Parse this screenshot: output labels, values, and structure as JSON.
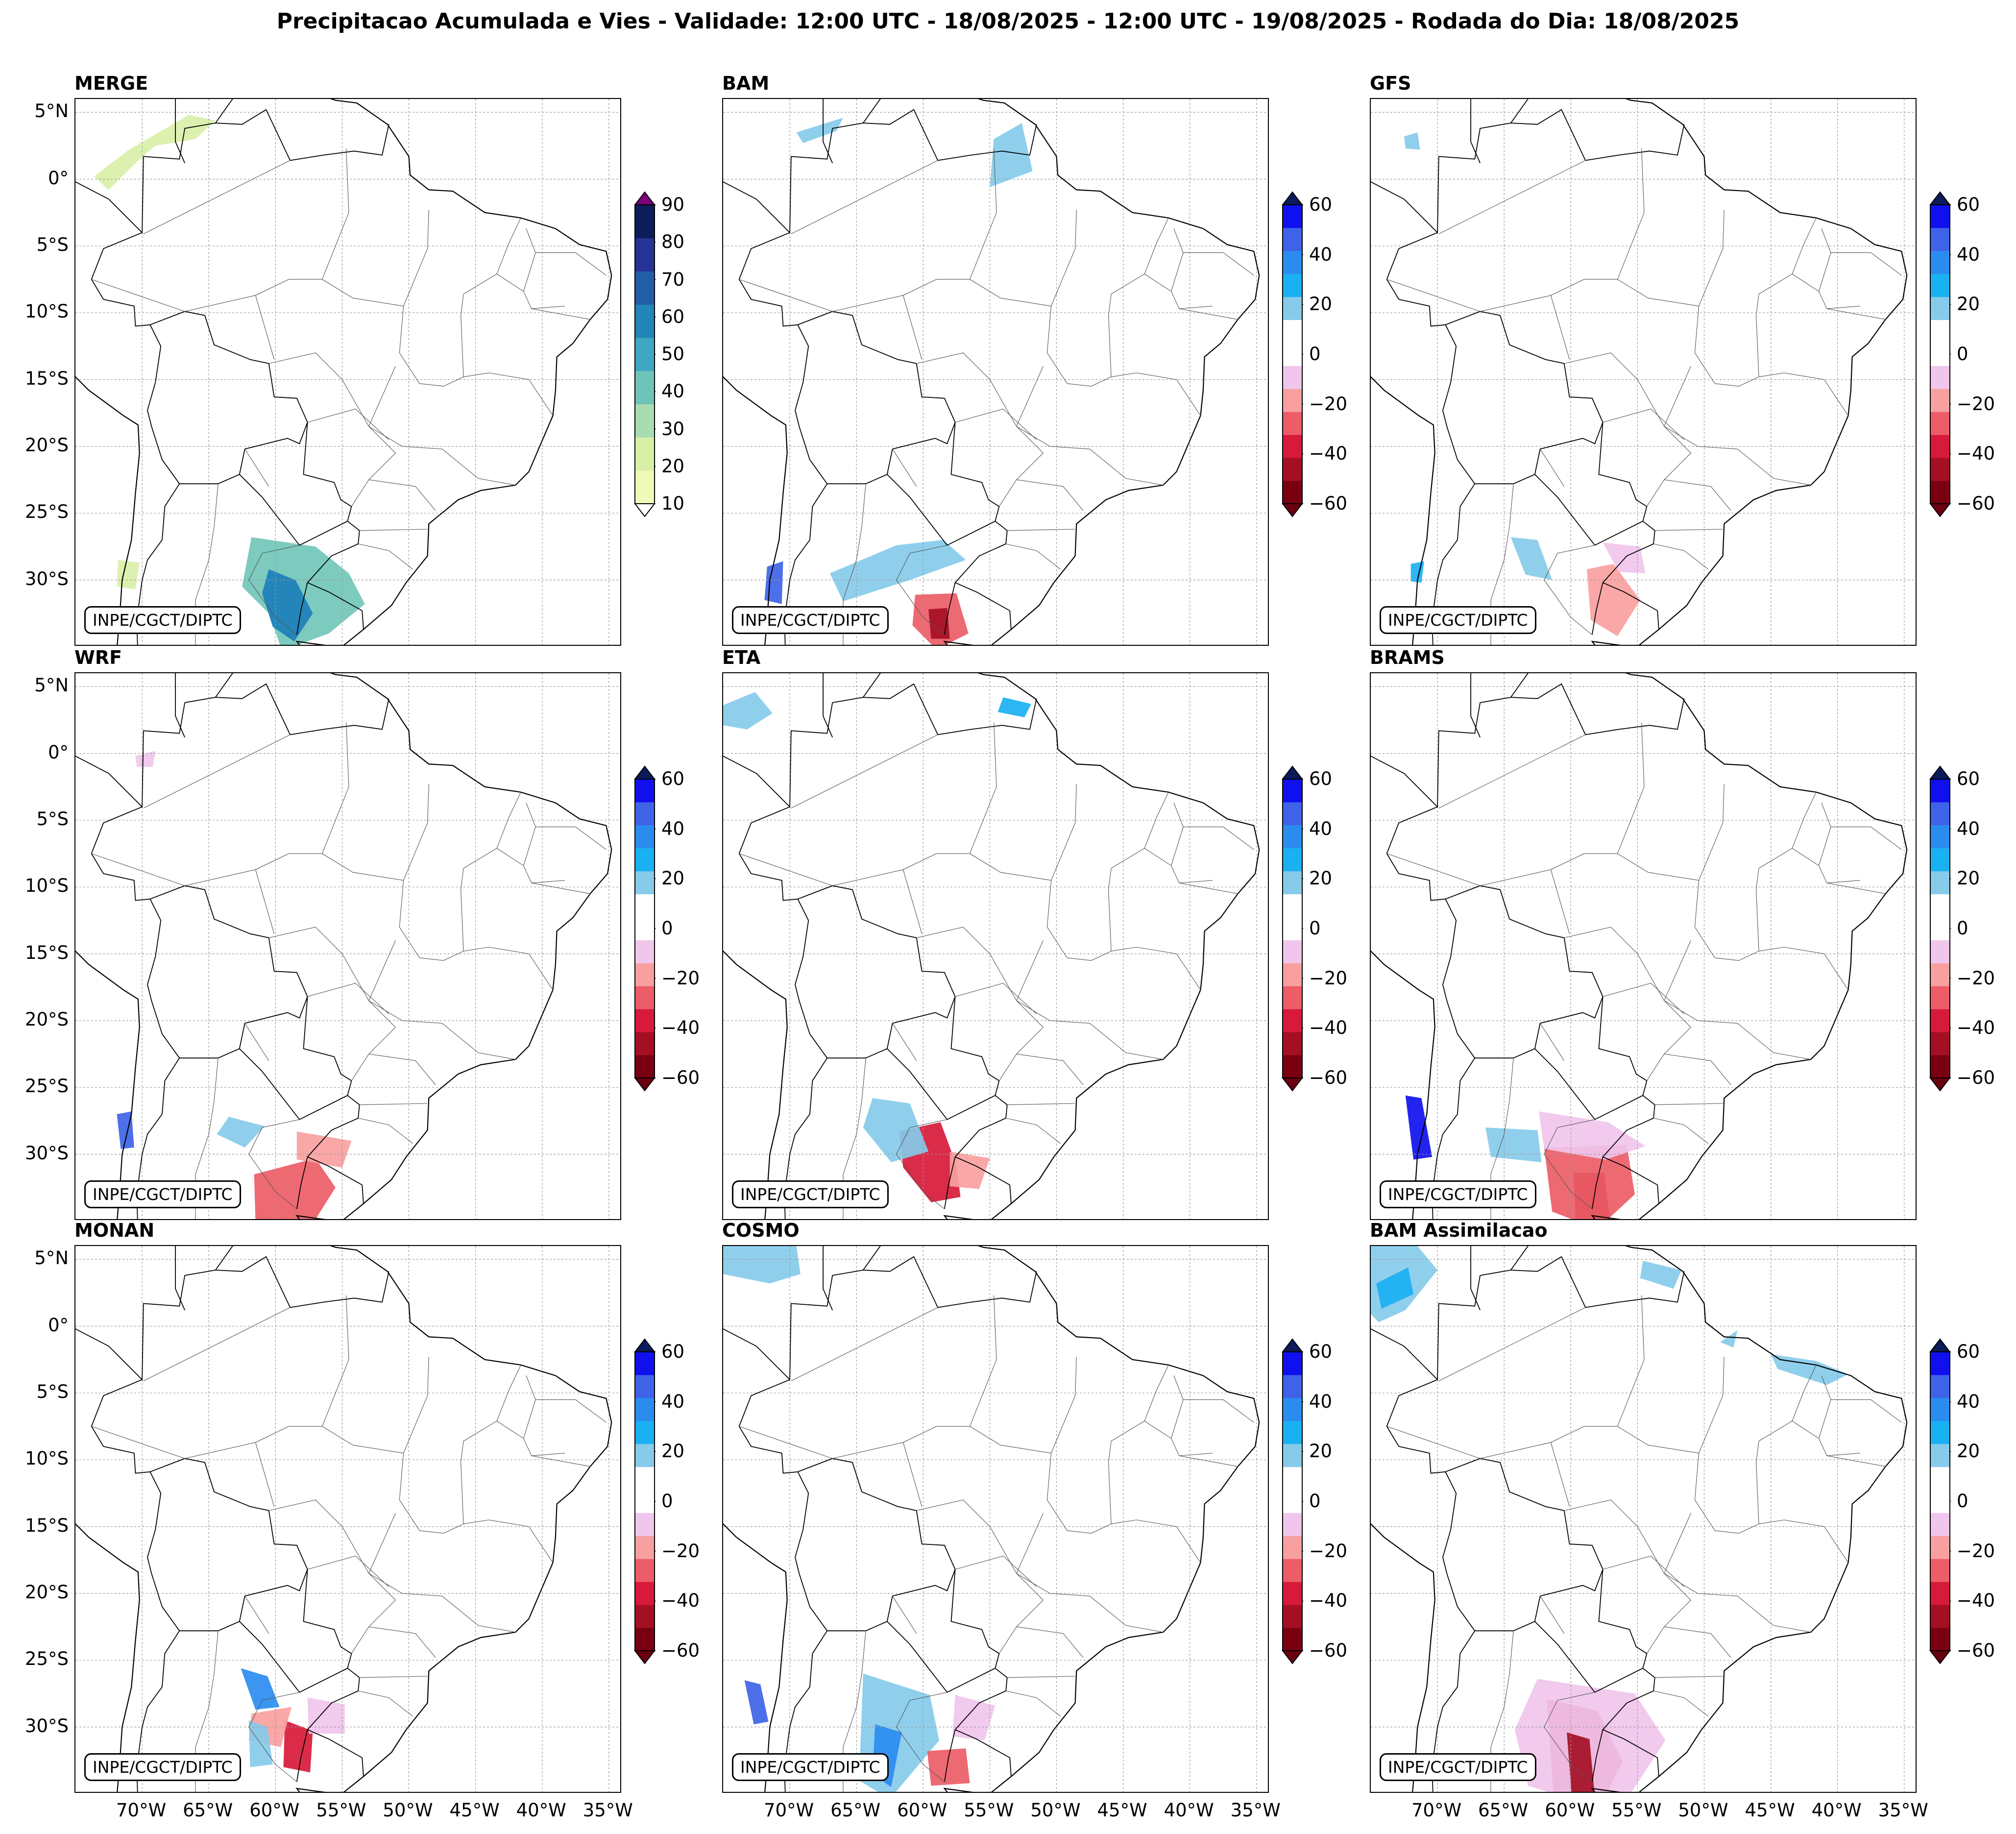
{
  "figure": {
    "title": "Precipitacao Acumulada e Vies - Validade: 12:00 UTC - 18/08/2025 - 12:00 UTC - 19/08/2025 - Rodada do Dia: 18/08/2025",
    "credit": "INPE/CGCT/DIPTC"
  },
  "axes": {
    "lat_ticks": [
      "5°N",
      "0°",
      "5°S",
      "10°S",
      "15°S",
      "20°S",
      "25°S",
      "30°S"
    ],
    "lon_ticks": [
      "70°W",
      "65°W",
      "60°W",
      "55°W",
      "50°W",
      "45°W",
      "40°W",
      "35°W"
    ]
  },
  "colors": {
    "merge_scale": [
      "#f0f9b8",
      "#d8f0a6",
      "#a9dcb1",
      "#6fc4b8",
      "#3ea8c2",
      "#2385b9",
      "#225ea8",
      "#253494",
      "#0c1d5a"
    ],
    "merge_over": "#7a0177",
    "bias_scale": [
      "#7a0011",
      "#a50f24",
      "#d7193a",
      "#ec5d67",
      "#f8a0a0",
      "#f0c6ec",
      "#ffffff",
      "#ffffff",
      "#86cbea",
      "#1ab1f2",
      "#2b8cf0",
      "#3f63e8",
      "#1010ee"
    ],
    "bias_over": "#0a1a5a",
    "bias_under": "#6a0010"
  },
  "colorbars": {
    "merge": {
      "ticks": [
        "90",
        "80",
        "70",
        "60",
        "50",
        "40",
        "30",
        "20",
        "10"
      ]
    },
    "bias": {
      "ticks": [
        "60",
        "40",
        "20",
        "0",
        "−20",
        "−40",
        "−60"
      ]
    }
  },
  "panels": [
    {
      "title": "MERGE",
      "type": "merge"
    },
    {
      "title": "BAM",
      "type": "bias"
    },
    {
      "title": "GFS",
      "type": "bias"
    },
    {
      "title": "WRF",
      "type": "bias"
    },
    {
      "title": "ETA",
      "type": "bias"
    },
    {
      "title": "BRAMS",
      "type": "bias"
    },
    {
      "title": "MONAN",
      "type": "bias"
    },
    {
      "title": "COSMO",
      "type": "bias"
    },
    {
      "title": "BAM Assimilacao",
      "type": "bias"
    }
  ]
}
